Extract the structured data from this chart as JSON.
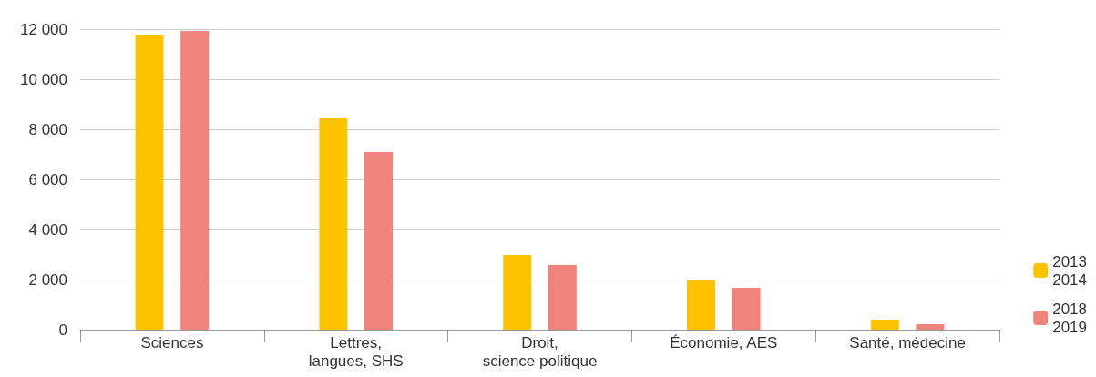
{
  "chart_data": {
    "type": "bar",
    "categories": [
      "Sciences",
      "Lettres,\nlangues, SHS",
      "Droit,\nscience politique",
      "Économie, AES",
      "Santé, médecine"
    ],
    "series": [
      {
        "name": "2013\n2014",
        "color": "#fdc300",
        "values": [
          11780,
          8440,
          2980,
          2000,
          400
        ]
      },
      {
        "name": "2018\n2019",
        "color": "#f0837b",
        "values": [
          11930,
          7090,
          2580,
          1670,
          220
        ]
      }
    ],
    "ylim": [
      0,
      12000
    ],
    "yticks": [
      0,
      {
        "value": 2000,
        "label": "2 000"
      },
      {
        "value": 4000,
        "label": "4 000"
      },
      {
        "value": 6000,
        "label": "6 000"
      },
      {
        "value": 8000,
        "label": "8 000"
      },
      {
        "value": 10000,
        "label": "10 000"
      },
      {
        "value": 12000,
        "label": "12 000"
      }
    ],
    "grid": "y",
    "legend": "bottom right"
  }
}
